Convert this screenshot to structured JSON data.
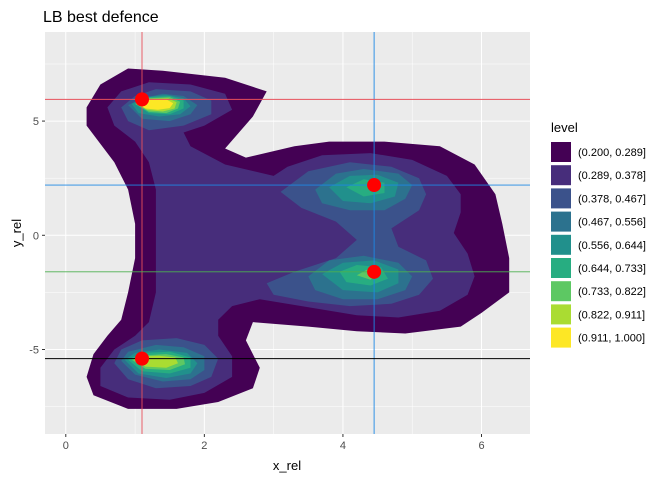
{
  "chart_data": {
    "type": "contour_filled",
    "title": "LB best defence",
    "xlabel": "x_rel",
    "ylabel": "y_rel",
    "xlim": [
      -0.3,
      6.7
    ],
    "ylim": [
      -8.7,
      8.9
    ],
    "x_ticks": [
      0,
      2,
      4,
      6
    ],
    "y_ticks": [
      -5,
      0,
      5
    ],
    "x_tick_labels": [
      "0",
      "2",
      "4",
      "6"
    ],
    "y_tick_labels": [
      "-5",
      "0",
      "5"
    ],
    "grid": true,
    "legend": {
      "title": "level",
      "placement": "right",
      "entries": [
        {
          "label": "(0.200, 0.289]",
          "color": "#440154"
        },
        {
          "label": "(0.289, 0.378]",
          "color": "#472D7B"
        },
        {
          "label": "(0.378, 0.467]",
          "color": "#3B528B"
        },
        {
          "label": "(0.467, 0.556]",
          "color": "#2C728E"
        },
        {
          "label": "(0.556, 0.644]",
          "color": "#21908C"
        },
        {
          "label": "(0.644, 0.733]",
          "color": "#27AD81"
        },
        {
          "label": "(0.733, 0.822]",
          "color": "#5DC863"
        },
        {
          "label": "(0.822, 0.911]",
          "color": "#AADC32"
        },
        {
          "label": "(0.911, 1.000]",
          "color": "#FDE725"
        }
      ]
    },
    "levels": [
      [
        [
          [
            0.3,
            5.6
          ],
          [
            0.5,
            6.6
          ],
          [
            0.9,
            7.3
          ],
          [
            1.4,
            7.2
          ],
          [
            2.3,
            6.9
          ],
          [
            2.9,
            6.3
          ],
          [
            2.7,
            5.2
          ],
          [
            2.3,
            3.8
          ],
          [
            2.6,
            3.4
          ],
          [
            3.3,
            3.9
          ],
          [
            3.8,
            4.1
          ],
          [
            4.6,
            4.1
          ],
          [
            5.4,
            3.9
          ],
          [
            5.9,
            3.1
          ],
          [
            6.2,
            1.8
          ],
          [
            6.3,
            0.5
          ],
          [
            6.4,
            -1.0
          ],
          [
            6.4,
            -2.5
          ],
          [
            6.0,
            -3.4
          ],
          [
            5.7,
            -4.0
          ],
          [
            4.9,
            -4.3
          ],
          [
            4.2,
            -4.2
          ],
          [
            3.5,
            -4.0
          ],
          [
            2.7,
            -3.8
          ],
          [
            2.6,
            -4.6
          ],
          [
            2.8,
            -5.8
          ],
          [
            2.7,
            -6.7
          ],
          [
            2.2,
            -7.3
          ],
          [
            1.6,
            -7.6
          ],
          [
            0.9,
            -7.6
          ],
          [
            0.4,
            -7.0
          ],
          [
            0.3,
            -6.2
          ],
          [
            0.4,
            -5.2
          ],
          [
            0.6,
            -4.4
          ],
          [
            0.8,
            -3.7
          ],
          [
            0.9,
            -2.5
          ],
          [
            1.0,
            -1.0
          ],
          [
            1.0,
            0.5
          ],
          [
            0.9,
            2.0
          ],
          [
            0.7,
            3.2
          ],
          [
            0.5,
            4.0
          ],
          [
            0.3,
            4.8
          ]
        ]
      ],
      [
        [
          [
            0.6,
            5.6
          ],
          [
            0.8,
            6.3
          ],
          [
            1.2,
            6.7
          ],
          [
            1.8,
            6.6
          ],
          [
            2.3,
            6.2
          ],
          [
            2.4,
            5.5
          ],
          [
            2.0,
            4.8
          ],
          [
            1.7,
            4.5
          ],
          [
            1.8,
            3.9
          ],
          [
            2.3,
            3.1
          ],
          [
            3.0,
            2.6
          ],
          [
            3.2,
            3.0
          ],
          [
            3.7,
            3.5
          ],
          [
            4.4,
            3.6
          ],
          [
            5.0,
            3.3
          ],
          [
            5.5,
            2.6
          ],
          [
            5.7,
            1.8
          ],
          [
            5.7,
            1.0
          ],
          [
            5.6,
            0.1
          ],
          [
            5.8,
            -0.8
          ],
          [
            5.9,
            -1.8
          ],
          [
            5.8,
            -2.6
          ],
          [
            5.4,
            -3.3
          ],
          [
            4.8,
            -3.6
          ],
          [
            4.2,
            -3.5
          ],
          [
            3.6,
            -3.2
          ],
          [
            2.8,
            -2.8
          ],
          [
            2.4,
            -3.1
          ],
          [
            2.2,
            -3.7
          ],
          [
            2.2,
            -4.4
          ],
          [
            2.4,
            -5.3
          ],
          [
            2.4,
            -6.2
          ],
          [
            2.0,
            -6.9
          ],
          [
            1.5,
            -7.2
          ],
          [
            0.9,
            -7.1
          ],
          [
            0.5,
            -6.6
          ],
          [
            0.5,
            -5.8
          ],
          [
            0.7,
            -5.0
          ],
          [
            1.0,
            -4.4
          ],
          [
            1.2,
            -3.8
          ],
          [
            1.3,
            -2.5
          ],
          [
            1.3,
            -1.0
          ],
          [
            1.3,
            0.5
          ],
          [
            1.3,
            2.0
          ],
          [
            1.2,
            3.2
          ],
          [
            1.0,
            4.1
          ],
          [
            0.7,
            4.8
          ]
        ]
      ],
      [
        [
          [
            0.8,
            5.6
          ],
          [
            1.0,
            6.1
          ],
          [
            1.3,
            6.4
          ],
          [
            1.8,
            6.3
          ],
          [
            2.1,
            5.9
          ],
          [
            2.1,
            5.3
          ],
          [
            1.7,
            4.8
          ],
          [
            1.2,
            4.6
          ],
          [
            0.9,
            5.0
          ]
        ],
        [
          [
            3.1,
            1.9
          ],
          [
            3.5,
            2.8
          ],
          [
            4.1,
            3.2
          ],
          [
            4.7,
            3.0
          ],
          [
            5.1,
            2.5
          ],
          [
            5.2,
            1.8
          ],
          [
            5.1,
            1.1
          ],
          [
            4.7,
            0.3
          ],
          [
            4.8,
            -0.5
          ],
          [
            5.2,
            -1.1
          ],
          [
            5.3,
            -1.9
          ],
          [
            5.1,
            -2.6
          ],
          [
            4.7,
            -3.0
          ],
          [
            4.1,
            -3.1
          ],
          [
            3.5,
            -2.9
          ],
          [
            3.0,
            -2.6
          ],
          [
            2.9,
            -2.1
          ],
          [
            3.3,
            -1.6
          ],
          [
            3.9,
            -1.0
          ],
          [
            4.2,
            -0.2
          ],
          [
            3.9,
            0.6
          ],
          [
            3.4,
            1.2
          ]
        ],
        [
          [
            0.7,
            -5.6
          ],
          [
            0.9,
            -6.3
          ],
          [
            1.3,
            -6.7
          ],
          [
            1.8,
            -6.6
          ],
          [
            2.1,
            -6.2
          ],
          [
            2.2,
            -5.4
          ],
          [
            2.0,
            -4.8
          ],
          [
            1.6,
            -4.5
          ],
          [
            1.1,
            -4.6
          ],
          [
            0.8,
            -5.0
          ]
        ]
      ],
      [
        [
          [
            0.9,
            5.7
          ],
          [
            1.1,
            6.0
          ],
          [
            1.4,
            6.2
          ],
          [
            1.7,
            6.1
          ],
          [
            1.9,
            5.7
          ],
          [
            1.8,
            5.3
          ],
          [
            1.5,
            5.0
          ],
          [
            1.1,
            5.1
          ]
        ],
        [
          [
            3.6,
            2.0
          ],
          [
            3.9,
            2.7
          ],
          [
            4.3,
            2.9
          ],
          [
            4.8,
            2.7
          ],
          [
            5.0,
            2.2
          ],
          [
            4.9,
            1.6
          ],
          [
            4.6,
            1.1
          ],
          [
            4.1,
            1.1
          ],
          [
            3.7,
            1.4
          ]
        ],
        [
          [
            3.5,
            -1.8
          ],
          [
            3.8,
            -1.1
          ],
          [
            4.3,
            -0.9
          ],
          [
            4.8,
            -1.2
          ],
          [
            5.0,
            -1.8
          ],
          [
            4.9,
            -2.4
          ],
          [
            4.5,
            -2.8
          ],
          [
            4.0,
            -2.8
          ],
          [
            3.6,
            -2.4
          ]
        ],
        [
          [
            0.8,
            -5.5
          ],
          [
            1.0,
            -6.1
          ],
          [
            1.4,
            -6.4
          ],
          [
            1.8,
            -6.3
          ],
          [
            2.0,
            -5.9
          ],
          [
            2.0,
            -5.3
          ],
          [
            1.7,
            -4.9
          ],
          [
            1.3,
            -4.8
          ],
          [
            0.9,
            -5.1
          ]
        ]
      ],
      [
        [
          [
            0.95,
            5.75
          ],
          [
            1.15,
            6.05
          ],
          [
            1.45,
            6.15
          ],
          [
            1.7,
            6.0
          ],
          [
            1.8,
            5.65
          ],
          [
            1.65,
            5.3
          ],
          [
            1.35,
            5.2
          ],
          [
            1.05,
            5.35
          ]
        ],
        [
          [
            3.8,
            2.1
          ],
          [
            4.1,
            2.6
          ],
          [
            4.5,
            2.65
          ],
          [
            4.8,
            2.3
          ],
          [
            4.75,
            1.7
          ],
          [
            4.4,
            1.4
          ],
          [
            4.0,
            1.5
          ]
        ],
        [
          [
            3.7,
            -1.7
          ],
          [
            4.0,
            -1.2
          ],
          [
            4.45,
            -1.1
          ],
          [
            4.8,
            -1.5
          ],
          [
            4.8,
            -2.1
          ],
          [
            4.5,
            -2.5
          ],
          [
            4.0,
            -2.4
          ]
        ],
        [
          [
            0.85,
            -5.45
          ],
          [
            1.05,
            -6.05
          ],
          [
            1.45,
            -6.25
          ],
          [
            1.8,
            -6.05
          ],
          [
            1.9,
            -5.6
          ],
          [
            1.75,
            -5.15
          ],
          [
            1.35,
            -5.0
          ],
          [
            1.0,
            -5.15
          ]
        ]
      ],
      [
        [
          [
            1.0,
            5.75
          ],
          [
            1.2,
            6.05
          ],
          [
            1.5,
            6.1
          ],
          [
            1.7,
            5.9
          ],
          [
            1.7,
            5.55
          ],
          [
            1.5,
            5.3
          ],
          [
            1.2,
            5.35
          ]
        ],
        [
          [
            4.05,
            2.1
          ],
          [
            4.3,
            2.45
          ],
          [
            4.6,
            2.3
          ],
          [
            4.6,
            1.85
          ],
          [
            4.3,
            1.7
          ]
        ],
        [
          [
            3.95,
            -1.6
          ],
          [
            4.2,
            -1.3
          ],
          [
            4.55,
            -1.4
          ],
          [
            4.65,
            -1.9
          ],
          [
            4.4,
            -2.2
          ],
          [
            4.05,
            -2.05
          ]
        ],
        [
          [
            0.9,
            -5.45
          ],
          [
            1.1,
            -5.95
          ],
          [
            1.5,
            -6.05
          ],
          [
            1.8,
            -5.8
          ],
          [
            1.8,
            -5.35
          ],
          [
            1.5,
            -5.1
          ],
          [
            1.1,
            -5.15
          ]
        ]
      ],
      [
        [
          [
            1.0,
            5.75
          ],
          [
            1.2,
            6.0
          ],
          [
            1.5,
            6.05
          ],
          [
            1.65,
            5.85
          ],
          [
            1.62,
            5.55
          ],
          [
            1.45,
            5.35
          ],
          [
            1.2,
            5.4
          ]
        ],
        [
          [
            4.2,
            -1.75
          ],
          [
            4.35,
            -1.5
          ],
          [
            4.5,
            -1.7
          ],
          [
            4.4,
            -1.95
          ]
        ],
        [
          [
            0.95,
            -5.45
          ],
          [
            1.15,
            -5.85
          ],
          [
            1.5,
            -5.9
          ],
          [
            1.72,
            -5.65
          ],
          [
            1.7,
            -5.35
          ],
          [
            1.45,
            -5.2
          ],
          [
            1.15,
            -5.25
          ]
        ]
      ],
      [
        [
          [
            1.02,
            5.75
          ],
          [
            1.2,
            5.98
          ],
          [
            1.48,
            6.0
          ],
          [
            1.6,
            5.82
          ],
          [
            1.57,
            5.55
          ],
          [
            1.4,
            5.42
          ],
          [
            1.18,
            5.48
          ]
        ],
        [
          [
            0.98,
            -5.45
          ],
          [
            1.15,
            -5.75
          ],
          [
            1.45,
            -5.8
          ],
          [
            1.62,
            -5.6
          ],
          [
            1.58,
            -5.35
          ],
          [
            1.35,
            -5.27
          ],
          [
            1.12,
            -5.3
          ]
        ]
      ],
      [
        [
          [
            1.05,
            5.75
          ],
          [
            1.2,
            5.93
          ],
          [
            1.45,
            5.95
          ],
          [
            1.55,
            5.78
          ],
          [
            1.5,
            5.57
          ],
          [
            1.33,
            5.5
          ],
          [
            1.15,
            5.55
          ]
        ]
      ]
    ],
    "points": [
      {
        "x": 1.1,
        "y": 5.95
      },
      {
        "x": 4.45,
        "y": 2.2
      },
      {
        "x": 4.45,
        "y": -1.6
      },
      {
        "x": 1.1,
        "y": -5.4
      }
    ],
    "reference_lines": [
      {
        "orientation": "vertical",
        "value": 1.1,
        "color": "#E8505B"
      },
      {
        "orientation": "vertical",
        "value": 4.45,
        "color": "#1E88E5"
      },
      {
        "orientation": "horizontal",
        "value": 5.95,
        "color": "#E8505B"
      },
      {
        "orientation": "horizontal",
        "value": 2.2,
        "color": "#1E88E5"
      },
      {
        "orientation": "horizontal",
        "value": -1.6,
        "color": "#4CAF50"
      },
      {
        "orientation": "horizontal",
        "value": -5.4,
        "color": "#000000"
      }
    ],
    "point_color": "#FF0000",
    "panel_background": "#EBEBEB",
    "grid_color": "#FFFFFF"
  }
}
